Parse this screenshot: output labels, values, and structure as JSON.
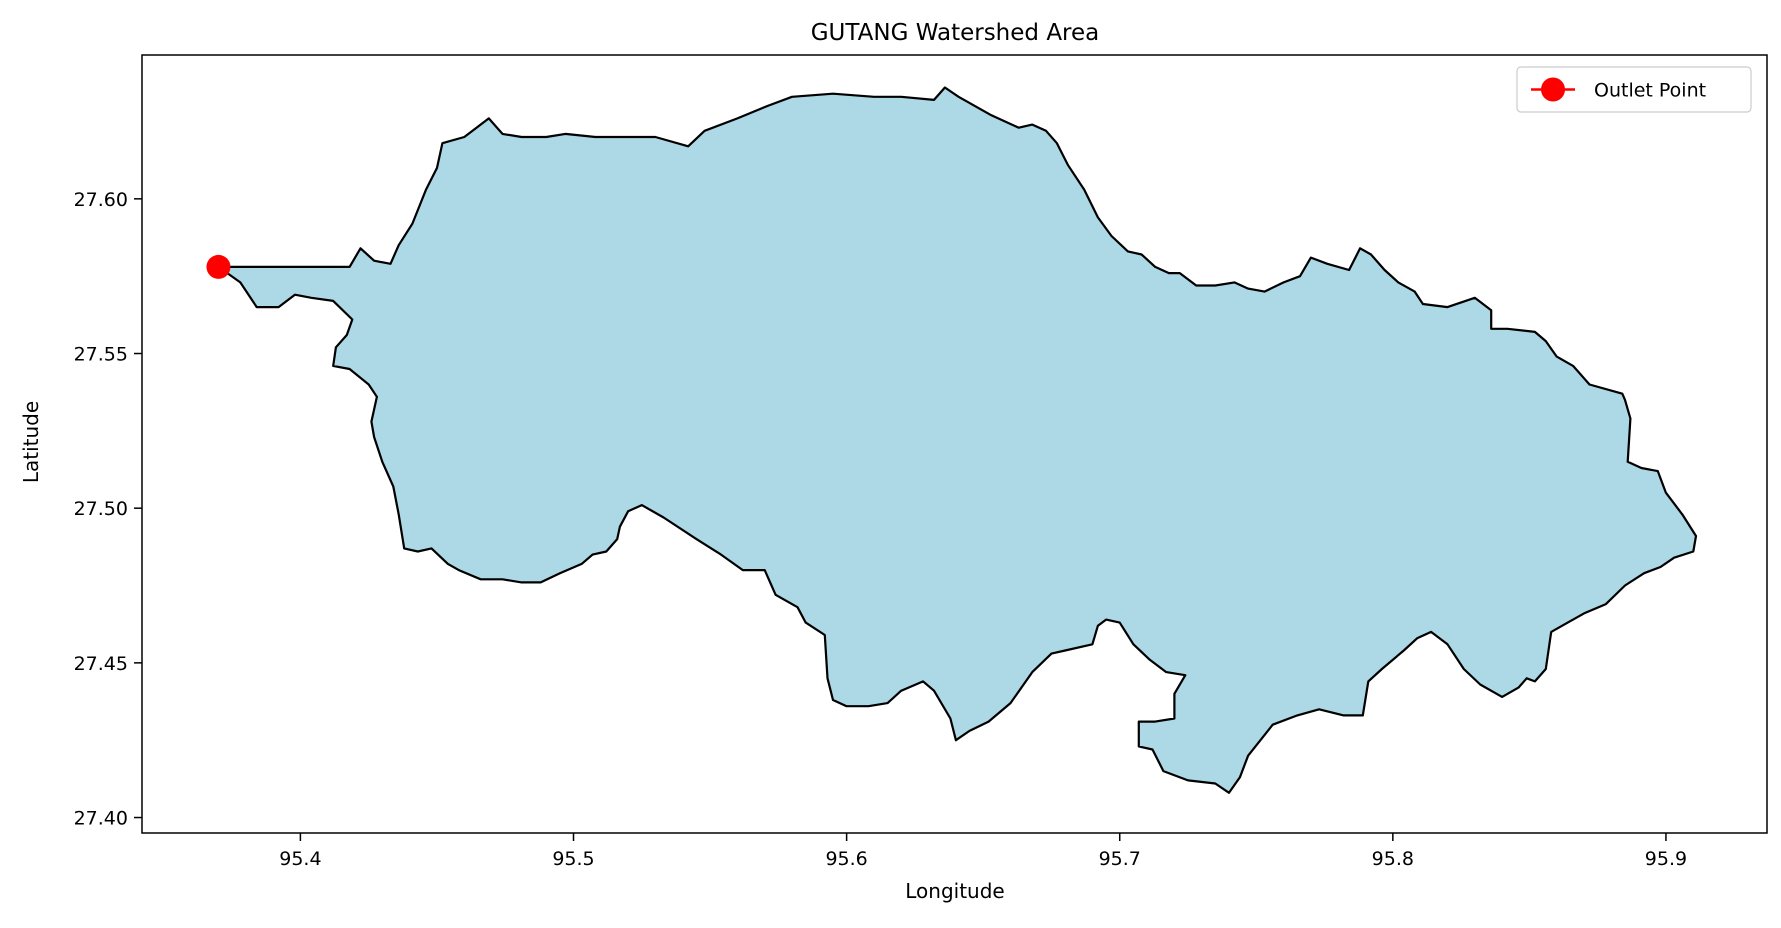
{
  "chart_data": {
    "type": "map",
    "title": "GUTANG Watershed Area",
    "xlabel": "Longitude",
    "ylabel": "Latitude",
    "xlim": [
      95.342,
      95.937
    ],
    "ylim": [
      27.395,
      27.6465
    ],
    "x_ticks": [
      {
        "value": 95.4,
        "label": "95.4"
      },
      {
        "value": 95.5,
        "label": "95.5"
      },
      {
        "value": 95.6,
        "label": "95.6"
      },
      {
        "value": 95.7,
        "label": "95.7"
      },
      {
        "value": 95.8,
        "label": "95.8"
      },
      {
        "value": 95.9,
        "label": "95.9"
      }
    ],
    "y_ticks": [
      {
        "value": 27.4,
        "label": "27.40"
      },
      {
        "value": 27.45,
        "label": "27.45"
      },
      {
        "value": 27.5,
        "label": "27.50"
      },
      {
        "value": 27.55,
        "label": "27.55"
      },
      {
        "value": 27.6,
        "label": "27.60"
      }
    ],
    "grid": false,
    "legend": {
      "placement": "top-right",
      "entries": [
        {
          "label": "Outlet Point",
          "color": "#ff0000",
          "marker": "circle"
        }
      ]
    },
    "watershed": {
      "fill_color": "#add8e6",
      "edge_color": "#000000",
      "boundary": [
        [
          95.37,
          27.578
        ],
        [
          95.382,
          27.578
        ],
        [
          95.4,
          27.578
        ],
        [
          95.418,
          27.578
        ],
        [
          95.422,
          27.584
        ],
        [
          95.427,
          27.58
        ],
        [
          95.433,
          27.579
        ],
        [
          95.436,
          27.585
        ],
        [
          95.441,
          27.592
        ],
        [
          95.446,
          27.603
        ],
        [
          95.45,
          27.61
        ],
        [
          95.452,
          27.618
        ],
        [
          95.46,
          27.62
        ],
        [
          95.469,
          27.626
        ],
        [
          95.474,
          27.621
        ],
        [
          95.481,
          27.62
        ],
        [
          95.49,
          27.62
        ],
        [
          95.497,
          27.621
        ],
        [
          95.508,
          27.62
        ],
        [
          95.52,
          27.62
        ],
        [
          95.53,
          27.62
        ],
        [
          95.542,
          27.617
        ],
        [
          95.548,
          27.622
        ],
        [
          95.56,
          27.626
        ],
        [
          95.571,
          27.63
        ],
        [
          95.58,
          27.633
        ],
        [
          95.595,
          27.634
        ],
        [
          95.61,
          27.633
        ],
        [
          95.62,
          27.633
        ],
        [
          95.632,
          27.632
        ],
        [
          95.636,
          27.636
        ],
        [
          95.641,
          27.633
        ],
        [
          95.653,
          27.627
        ],
        [
          95.663,
          27.623
        ],
        [
          95.668,
          27.624
        ],
        [
          95.673,
          27.622
        ],
        [
          95.677,
          27.618
        ],
        [
          95.681,
          27.611
        ],
        [
          95.687,
          27.603
        ],
        [
          95.692,
          27.594
        ],
        [
          95.697,
          27.588
        ],
        [
          95.703,
          27.583
        ],
        [
          95.708,
          27.582
        ],
        [
          95.713,
          27.578
        ],
        [
          95.718,
          27.576
        ],
        [
          95.722,
          27.576
        ],
        [
          95.728,
          27.572
        ],
        [
          95.735,
          27.572
        ],
        [
          95.742,
          27.573
        ],
        [
          95.747,
          27.571
        ],
        [
          95.753,
          27.57
        ],
        [
          95.76,
          27.573
        ],
        [
          95.766,
          27.575
        ],
        [
          95.77,
          27.581
        ],
        [
          95.776,
          27.579
        ],
        [
          95.784,
          27.577
        ],
        [
          95.788,
          27.584
        ],
        [
          95.792,
          27.582
        ],
        [
          95.797,
          27.577
        ],
        [
          95.802,
          27.573
        ],
        [
          95.808,
          27.57
        ],
        [
          95.811,
          27.566
        ],
        [
          95.82,
          27.565
        ],
        [
          95.83,
          27.568
        ],
        [
          95.836,
          27.564
        ],
        [
          95.836,
          27.558
        ],
        [
          95.842,
          27.558
        ],
        [
          95.852,
          27.557
        ],
        [
          95.856,
          27.554
        ],
        [
          95.86,
          27.549
        ],
        [
          95.866,
          27.546
        ],
        [
          95.872,
          27.54
        ],
        [
          95.884,
          27.537
        ],
        [
          95.885,
          27.535
        ],
        [
          95.887,
          27.529
        ],
        [
          95.886,
          27.515
        ],
        [
          95.891,
          27.513
        ],
        [
          95.897,
          27.512
        ],
        [
          95.9,
          27.505
        ],
        [
          95.906,
          27.498
        ],
        [
          95.911,
          27.491
        ],
        [
          95.91,
          27.486
        ],
        [
          95.903,
          27.484
        ],
        [
          95.898,
          27.481
        ],
        [
          95.892,
          27.479
        ],
        [
          95.885,
          27.475
        ],
        [
          95.878,
          27.469
        ],
        [
          95.87,
          27.466
        ],
        [
          95.862,
          27.462
        ],
        [
          95.858,
          27.46
        ],
        [
          95.856,
          27.448
        ],
        [
          95.852,
          27.444
        ],
        [
          95.849,
          27.445
        ],
        [
          95.846,
          27.442
        ],
        [
          95.84,
          27.439
        ],
        [
          95.832,
          27.443
        ],
        [
          95.826,
          27.448
        ],
        [
          95.82,
          27.456
        ],
        [
          95.814,
          27.46
        ],
        [
          95.809,
          27.458
        ],
        [
          95.804,
          27.454
        ],
        [
          95.796,
          27.448
        ],
        [
          95.791,
          27.444
        ],
        [
          95.789,
          27.433
        ],
        [
          95.782,
          27.433
        ],
        [
          95.773,
          27.435
        ],
        [
          95.765,
          27.433
        ],
        [
          95.756,
          27.43
        ],
        [
          95.747,
          27.42
        ],
        [
          95.744,
          27.413
        ],
        [
          95.74,
          27.408
        ],
        [
          95.735,
          27.411
        ],
        [
          95.725,
          27.412
        ],
        [
          95.716,
          27.415
        ],
        [
          95.712,
          27.422
        ],
        [
          95.707,
          27.423
        ],
        [
          95.707,
          27.431
        ],
        [
          95.713,
          27.431
        ],
        [
          95.72,
          27.432
        ],
        [
          95.72,
          27.44
        ],
        [
          95.724,
          27.446
        ],
        [
          95.717,
          27.447
        ],
        [
          95.711,
          27.451
        ],
        [
          95.705,
          27.456
        ],
        [
          95.7,
          27.463
        ],
        [
          95.695,
          27.464
        ],
        [
          95.692,
          27.462
        ],
        [
          95.69,
          27.456
        ],
        [
          95.68,
          27.454
        ],
        [
          95.675,
          27.453
        ],
        [
          95.668,
          27.447
        ],
        [
          95.66,
          27.437
        ],
        [
          95.652,
          27.431
        ],
        [
          95.645,
          27.428
        ],
        [
          95.64,
          27.425
        ],
        [
          95.638,
          27.432
        ],
        [
          95.632,
          27.441
        ],
        [
          95.628,
          27.444
        ],
        [
          95.62,
          27.441
        ],
        [
          95.615,
          27.437
        ],
        [
          95.608,
          27.436
        ],
        [
          95.6,
          27.436
        ],
        [
          95.595,
          27.438
        ],
        [
          95.593,
          27.445
        ],
        [
          95.592,
          27.459
        ],
        [
          95.585,
          27.463
        ],
        [
          95.582,
          27.468
        ],
        [
          95.574,
          27.472
        ],
        [
          95.57,
          27.48
        ],
        [
          95.562,
          27.48
        ],
        [
          95.554,
          27.485
        ],
        [
          95.545,
          27.49
        ],
        [
          95.533,
          27.497
        ],
        [
          95.525,
          27.501
        ],
        [
          95.52,
          27.499
        ],
        [
          95.517,
          27.494
        ],
        [
          95.516,
          27.49
        ],
        [
          95.512,
          27.486
        ],
        [
          95.507,
          27.485
        ],
        [
          95.503,
          27.482
        ],
        [
          95.495,
          27.479
        ],
        [
          95.488,
          27.476
        ],
        [
          95.481,
          27.476
        ],
        [
          95.474,
          27.477
        ],
        [
          95.466,
          27.477
        ],
        [
          95.458,
          27.48
        ],
        [
          95.454,
          27.482
        ],
        [
          95.448,
          27.487
        ],
        [
          95.443,
          27.486
        ],
        [
          95.438,
          27.487
        ],
        [
          95.436,
          27.498
        ],
        [
          95.434,
          27.507
        ],
        [
          95.43,
          27.515
        ],
        [
          95.427,
          27.523
        ],
        [
          95.426,
          27.528
        ],
        [
          95.428,
          27.536
        ],
        [
          95.425,
          27.54
        ],
        [
          95.418,
          27.545
        ],
        [
          95.412,
          27.546
        ],
        [
          95.413,
          27.552
        ],
        [
          95.417,
          27.556
        ],
        [
          95.419,
          27.561
        ],
        [
          95.412,
          27.567
        ],
        [
          95.404,
          27.568
        ],
        [
          95.398,
          27.569
        ],
        [
          95.392,
          27.565
        ],
        [
          95.384,
          27.565
        ],
        [
          95.378,
          27.573
        ],
        [
          95.37,
          27.578
        ]
      ]
    },
    "outlet_point": {
      "label": "Outlet Point",
      "lon": 95.37,
      "lat": 27.578,
      "color": "#ff0000"
    }
  }
}
